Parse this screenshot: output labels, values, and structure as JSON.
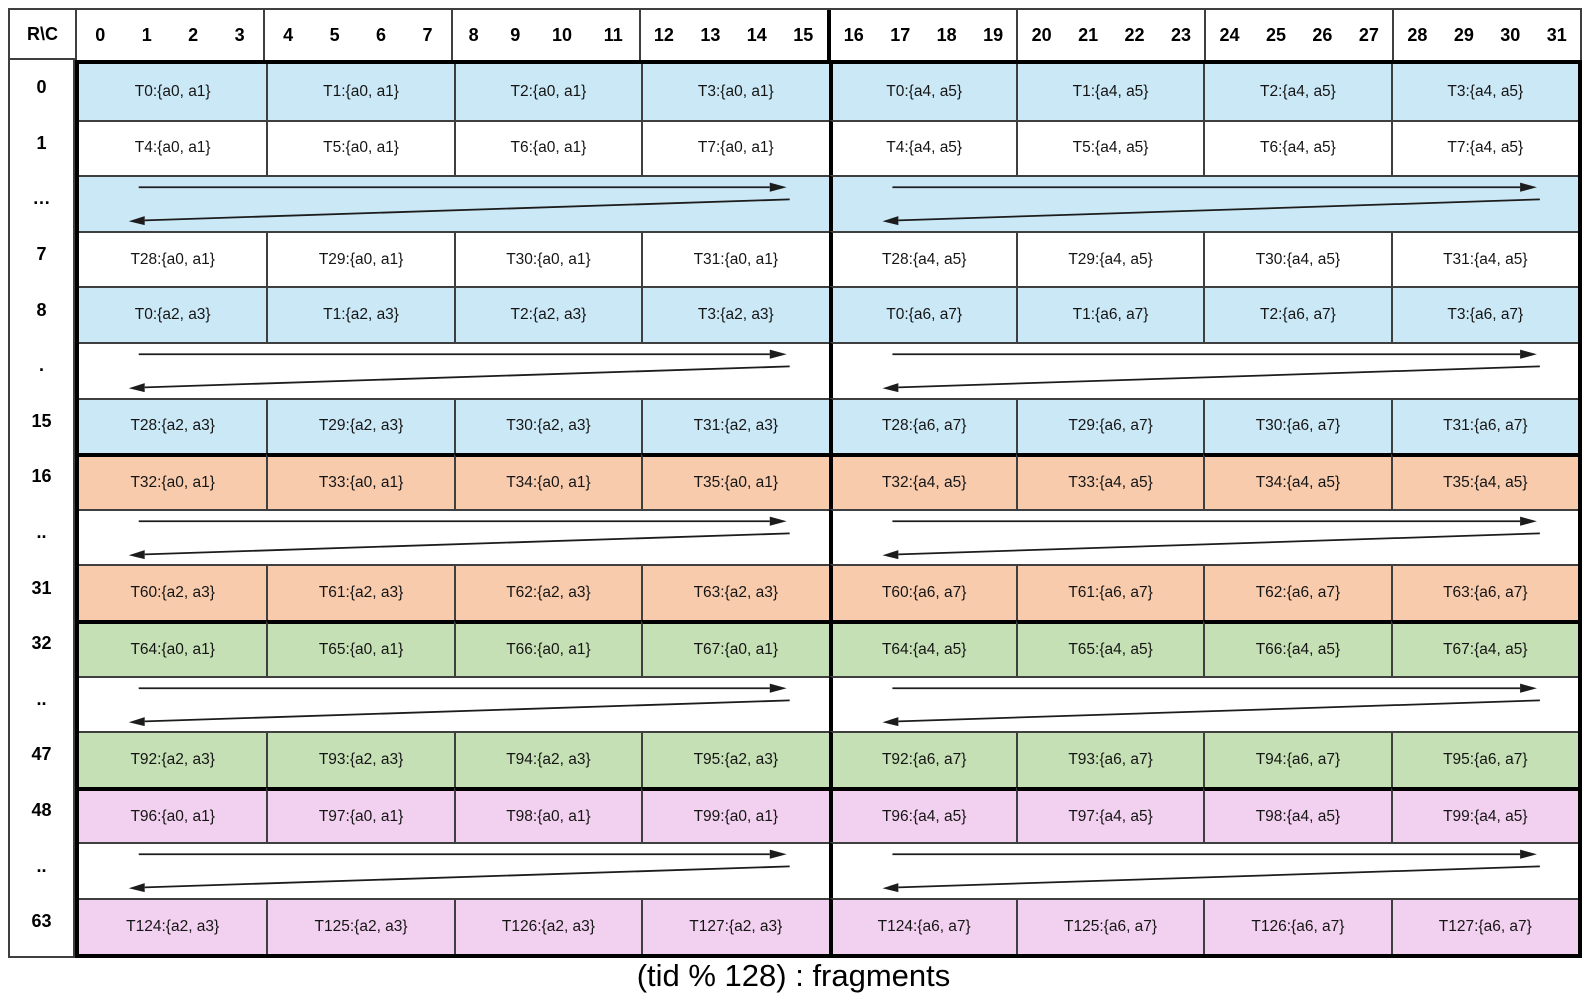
{
  "caption": "(tid % 128) : fragments",
  "arrow_color": "#1c1c1c",
  "table": {
    "corner_label": "R\\C",
    "column_groups": [
      [
        "0",
        "1",
        "2",
        "3"
      ],
      [
        "4",
        "5",
        "6",
        "7"
      ],
      [
        "8",
        "9",
        "10",
        "11"
      ],
      [
        "12",
        "13",
        "14",
        "15"
      ],
      [
        "16",
        "17",
        "18",
        "19"
      ],
      [
        "20",
        "21",
        "22",
        "23"
      ],
      [
        "24",
        "25",
        "26",
        "27"
      ],
      [
        "28",
        "29",
        "30",
        "31"
      ]
    ],
    "bands": {
      "blue": "#CBE8F6",
      "orange": "#F8CBAD",
      "green": "#C5E0B4",
      "pink": "#F2D0EF",
      "white": "#FFFFFF"
    },
    "rows": [
      {
        "label": "0",
        "band": "blue",
        "cells": [
          "T0:{a0, a1}",
          "T1:{a0, a1}",
          "T2:{a0, a1}",
          "T3:{a0, a1}",
          "T0:{a4, a5}",
          "T1:{a4, a5}",
          "T2:{a4, a5}",
          "T3:{a4, a5}"
        ]
      },
      {
        "label": "1",
        "band": "white",
        "cells": [
          "T4:{a0, a1}",
          "T5:{a0, a1}",
          "T6:{a0, a1}",
          "T7:{a0, a1}",
          "T4:{a4, a5}",
          "T5:{a4, a5}",
          "T6:{a4, a5}",
          "T7:{a4, a5}"
        ]
      },
      {
        "label": "…",
        "band": "blue",
        "arrows": true
      },
      {
        "label": "7",
        "band": "white",
        "cells": [
          "T28:{a0, a1}",
          "T29:{a0, a1}",
          "T30:{a0, a1}",
          "T31:{a0, a1}",
          "T28:{a4, a5}",
          "T29:{a4, a5}",
          "T30:{a4, a5}",
          "T31:{a4, a5}"
        ]
      },
      {
        "label": "8",
        "band": "blue",
        "cells": [
          "T0:{a2, a3}",
          "T1:{a2, a3}",
          "T2:{a2, a3}",
          "T3:{a2, a3}",
          "T0:{a6, a7}",
          "T1:{a6, a7}",
          "T2:{a6, a7}",
          "T3:{a6, a7}"
        ]
      },
      {
        "label": ".",
        "band": "white",
        "arrows": true
      },
      {
        "label": "15",
        "band": "blue",
        "cells": [
          "T28:{a2, a3}",
          "T29:{a2, a3}",
          "T30:{a2, a3}",
          "T31:{a2, a3}",
          "T28:{a6, a7}",
          "T29:{a6, a7}",
          "T30:{a6, a7}",
          "T31:{a6, a7}"
        ]
      },
      {
        "label": "16",
        "band": "orange",
        "thick_top": true,
        "cells": [
          "T32:{a0, a1}",
          "T33:{a0, a1}",
          "T34:{a0, a1}",
          "T35:{a0, a1}",
          "T32:{a4, a5}",
          "T33:{a4, a5}",
          "T34:{a4, a5}",
          "T35:{a4, a5}"
        ]
      },
      {
        "label": "..",
        "band": "white",
        "arrows": true
      },
      {
        "label": "31",
        "band": "orange",
        "cells": [
          "T60:{a2, a3}",
          "T61:{a2, a3}",
          "T62:{a2, a3}",
          "T63:{a2, a3}",
          "T60:{a6, a7}",
          "T61:{a6, a7}",
          "T62:{a6, a7}",
          "T63:{a6, a7}"
        ]
      },
      {
        "label": "32",
        "band": "green",
        "thick_top": true,
        "cells": [
          "T64:{a0, a1}",
          "T65:{a0, a1}",
          "T66:{a0, a1}",
          "T67:{a0, a1}",
          "T64:{a4, a5}",
          "T65:{a4, a5}",
          "T66:{a4, a5}",
          "T67:{a4, a5}"
        ]
      },
      {
        "label": "..",
        "band": "white",
        "arrows": true
      },
      {
        "label": "47",
        "band": "green",
        "cells": [
          "T92:{a2, a3}",
          "T93:{a2, a3}",
          "T94:{a2, a3}",
          "T95:{a2, a3}",
          "T92:{a6, a7}",
          "T93:{a6, a7}",
          "T94:{a6, a7}",
          "T95:{a6, a7}"
        ]
      },
      {
        "label": "48",
        "band": "pink",
        "thick_top": true,
        "cells": [
          "T96:{a0, a1}",
          "T97:{a0, a1}",
          "T98:{a0, a1}",
          "T99:{a0, a1}",
          "T96:{a4, a5}",
          "T97:{a4, a5}",
          "T98:{a4, a5}",
          "T99:{a4, a5}"
        ]
      },
      {
        "label": "..",
        "band": "white",
        "arrows": true
      },
      {
        "label": "63",
        "band": "pink",
        "cells": [
          "T124:{a2, a3}",
          "T125:{a2, a3}",
          "T126:{a2, a3}",
          "T127:{a2, a3}",
          "T124:{a6, a7}",
          "T125:{a6, a7}",
          "T126:{a6, a7}",
          "T127:{a6, a7}"
        ]
      }
    ]
  }
}
